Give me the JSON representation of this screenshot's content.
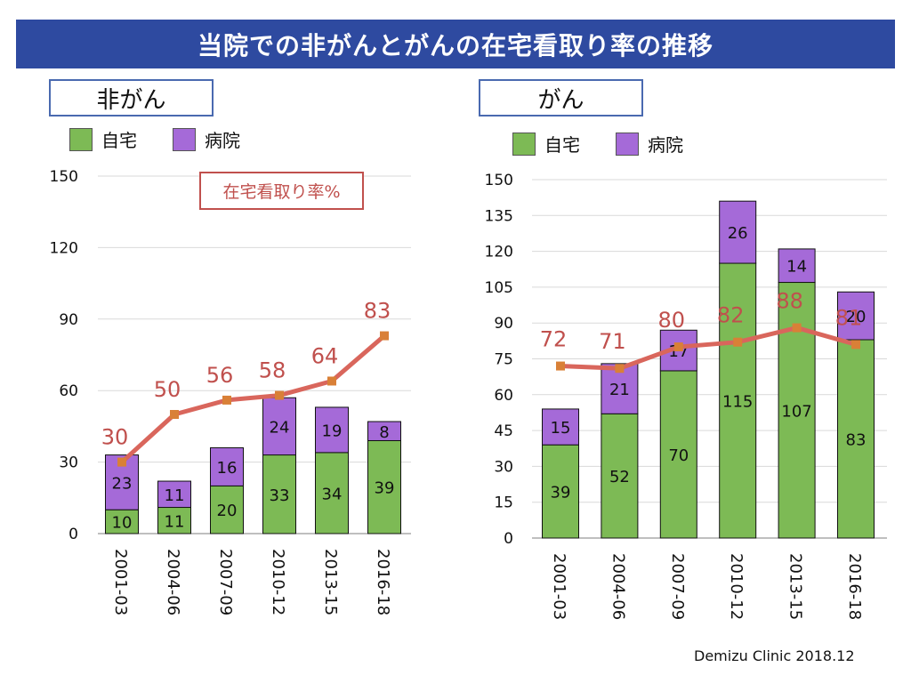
{
  "header": {
    "title": "当院での非がんとがんの在宅看取り率の推移"
  },
  "footer": {
    "text": "Demizu Clinic 2018.12"
  },
  "colors": {
    "home": "#7dba55",
    "hospital": "#a56ad8",
    "rate": "#d9665c",
    "rate_marker": "#d98037",
    "rate_label": "#c0504d",
    "grid": "#d9d9d9"
  },
  "chart_data": [
    {
      "type": "bar",
      "panel_label": "非がん",
      "legend": [
        "自宅",
        "病院"
      ],
      "annotation": "在宅看取り率%",
      "categories": [
        "2001-03",
        "2004-06",
        "2007-09",
        "2010-12",
        "2013-15",
        "2016-18"
      ],
      "series": [
        {
          "name": "自宅",
          "values": [
            10,
            11,
            20,
            33,
            34,
            39
          ]
        },
        {
          "name": "病院",
          "values": [
            23,
            11,
            16,
            24,
            19,
            8
          ]
        }
      ],
      "line_series": {
        "values": [
          30,
          50,
          56,
          58,
          64,
          83
        ]
      },
      "ylim": [
        0,
        150
      ],
      "yticks": [
        0,
        30,
        60,
        90,
        120,
        150
      ],
      "grid": true,
      "legend_position": "top"
    },
    {
      "type": "bar",
      "panel_label": "がん",
      "legend": [
        "自宅",
        "病院"
      ],
      "categories": [
        "2001-03",
        "2004-06",
        "2007-09",
        "2010-12",
        "2013-15",
        "2016-18"
      ],
      "series": [
        {
          "name": "自宅",
          "values": [
            39,
            52,
            70,
            115,
            107,
            83
          ]
        },
        {
          "name": "病院",
          "values": [
            15,
            21,
            17,
            26,
            14,
            20
          ]
        }
      ],
      "line_series": {
        "values": [
          72,
          71,
          80,
          82,
          88,
          81
        ]
      },
      "ylim": [
        0,
        150
      ],
      "yticks": [
        0,
        15,
        30,
        45,
        60,
        75,
        90,
        105,
        120,
        135,
        150
      ],
      "grid": true,
      "legend_position": "top"
    }
  ]
}
